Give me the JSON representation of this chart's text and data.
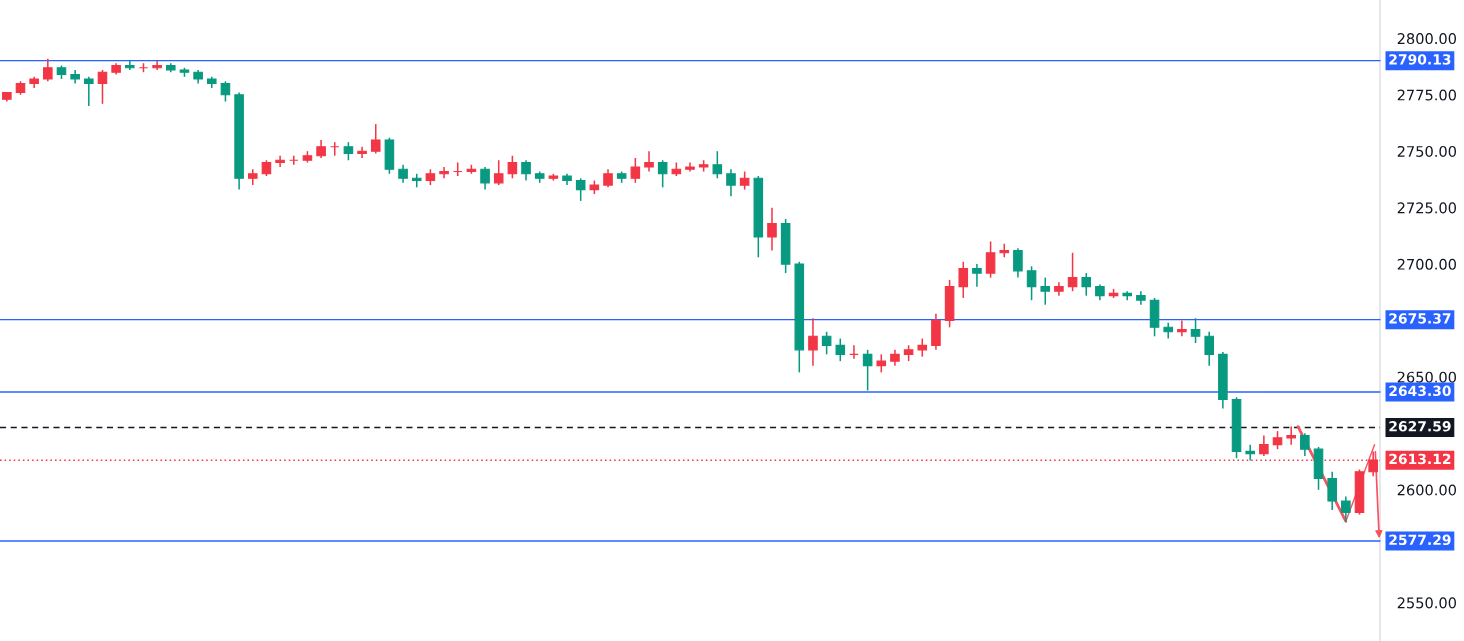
{
  "chart_data": {
    "type": "candlestick",
    "categories": [
      null,
      null,
      null,
      null,
      null,
      null,
      null,
      null,
      null,
      null,
      null,
      null,
      null,
      null,
      null,
      null,
      null,
      null,
      null,
      null,
      null,
      null,
      null,
      null,
      null,
      null,
      null,
      null,
      null,
      null,
      null,
      null,
      null,
      null,
      null,
      null,
      null,
      null,
      null,
      null,
      null,
      null,
      null,
      null,
      null,
      null,
      null,
      null,
      null,
      null,
      null,
      null,
      null,
      null,
      null,
      null,
      null,
      null,
      null,
      null,
      null,
      null,
      null,
      null,
      null,
      null,
      null,
      null,
      null,
      null,
      null,
      null,
      null,
      null,
      null,
      null,
      null,
      null,
      null,
      null,
      null,
      null,
      null,
      null,
      null,
      null,
      null,
      null,
      null,
      null,
      null,
      null,
      null,
      null,
      null,
      null,
      null,
      null,
      null,
      null,
      null
    ],
    "ohlc": [
      [
        2773,
        2776,
        2772,
        2776
      ],
      [
        2776,
        2781,
        2775,
        2780
      ],
      [
        2780,
        2783,
        2778,
        2782
      ],
      [
        2782,
        2791,
        2781,
        2787
      ],
      [
        2787,
        2788,
        2782,
        2784
      ],
      [
        2784,
        2786,
        2780,
        2782
      ],
      [
        2782,
        2783,
        2770,
        2780
      ],
      [
        2780,
        2786,
        2771,
        2785
      ],
      [
        2785,
        2789,
        2784,
        2788
      ],
      [
        2788,
        2790,
        2786,
        2787
      ],
      [
        2787,
        2789,
        2785,
        2787
      ],
      [
        2787,
        2790,
        2786,
        2788
      ],
      [
        2788,
        2789,
        2785,
        2786
      ],
      [
        2786,
        2787,
        2783,
        2785
      ],
      [
        2785,
        2786,
        2780,
        2782
      ],
      [
        2782,
        2783,
        2778,
        2780
      ],
      [
        2780,
        2781,
        2772,
        2775
      ],
      [
        2775,
        2776,
        2733,
        2738
      ],
      [
        2738,
        2742,
        2735,
        2740
      ],
      [
        2740,
        2746,
        2739,
        2745
      ],
      [
        2745,
        2748,
        2743,
        2746
      ],
      [
        2746,
        2748,
        2744,
        2746
      ],
      [
        2746,
        2750,
        2745,
        2748
      ],
      [
        2748,
        2755,
        2747,
        2752
      ],
      [
        2752,
        2754,
        2748,
        2752
      ],
      [
        2752,
        2754,
        2746,
        2749
      ],
      [
        2749,
        2752,
        2747,
        2750
      ],
      [
        2750,
        2762,
        2749,
        2755
      ],
      [
        2755,
        2756,
        2740,
        2742
      ],
      [
        2742,
        2744,
        2736,
        2738
      ],
      [
        2738,
        2740,
        2734,
        2737
      ],
      [
        2737,
        2742,
        2735,
        2740
      ],
      [
        2740,
        2743,
        2738,
        2741
      ],
      [
        2741,
        2745,
        2739,
        2741
      ],
      [
        2741,
        2744,
        2740,
        2742
      ],
      [
        2742,
        2743,
        2733,
        2736
      ],
      [
        2736,
        2746,
        2735,
        2740
      ],
      [
        2740,
        2748,
        2738,
        2745
      ],
      [
        2745,
        2746,
        2737,
        2740
      ],
      [
        2740,
        2741,
        2736,
        2738
      ],
      [
        2738,
        2740,
        2737,
        2739
      ],
      [
        2739,
        2740,
        2735,
        2737
      ],
      [
        2737,
        2738,
        2728,
        2733
      ],
      [
        2733,
        2737,
        2731,
        2735
      ],
      [
        2735,
        2742,
        2734,
        2740
      ],
      [
        2740,
        2741,
        2736,
        2738
      ],
      [
        2738,
        2747,
        2736,
        2743
      ],
      [
        2743,
        2750,
        2741,
        2745
      ],
      [
        2745,
        2746,
        2734,
        2740
      ],
      [
        2740,
        2745,
        2739,
        2742
      ],
      [
        2742,
        2745,
        2741,
        2743
      ],
      [
        2743,
        2746,
        2741,
        2744
      ],
      [
        2744,
        2750,
        2738,
        2740
      ],
      [
        2740,
        2742,
        2730,
        2735
      ],
      [
        2735,
        2741,
        2733,
        2738
      ],
      [
        2738,
        2739,
        2703,
        2712
      ],
      [
        2712,
        2725,
        2706,
        2718
      ],
      [
        2718,
        2720,
        2696,
        2700
      ],
      [
        2700,
        2701,
        2652,
        2662
      ],
      [
        2662,
        2676,
        2655,
        2668
      ],
      [
        2668,
        2670,
        2660,
        2664
      ],
      [
        2664,
        2667,
        2657,
        2660
      ],
      [
        2660,
        2664,
        2658,
        2660
      ],
      [
        2660,
        2662,
        2644,
        2655
      ],
      [
        2655,
        2660,
        2652,
        2657
      ],
      [
        2657,
        2662,
        2655,
        2660
      ],
      [
        2660,
        2664,
        2657,
        2662
      ],
      [
        2662,
        2667,
        2659,
        2664
      ],
      [
        2664,
        2678,
        2662,
        2675
      ],
      [
        2675,
        2693,
        2672,
        2690
      ],
      [
        2690,
        2701,
        2685,
        2698
      ],
      [
        2698,
        2700,
        2690,
        2696
      ],
      [
        2696,
        2710,
        2694,
        2705
      ],
      [
        2705,
        2709,
        2703,
        2706
      ],
      [
        2706,
        2707,
        2694,
        2697
      ],
      [
        2697,
        2699,
        2684,
        2690
      ],
      [
        2690,
        2694,
        2682,
        2688
      ],
      [
        2688,
        2692,
        2686,
        2690
      ],
      [
        2690,
        2705,
        2688,
        2694
      ],
      [
        2694,
        2696,
        2686,
        2690
      ],
      [
        2690,
        2691,
        2684,
        2686
      ],
      [
        2686,
        2689,
        2685,
        2687
      ],
      [
        2687,
        2688,
        2684,
        2686
      ],
      [
        2686,
        2688,
        2682,
        2684
      ],
      [
        2684,
        2685,
        2668,
        2672
      ],
      [
        2672,
        2674,
        2667,
        2670
      ],
      [
        2670,
        2675,
        2668,
        2671
      ],
      [
        2671,
        2676,
        2665,
        2668
      ],
      [
        2668,
        2670,
        2655,
        2660
      ],
      [
        2660,
        2661,
        2636,
        2640
      ],
      [
        2640,
        2641,
        2614,
        2617
      ],
      [
        2617,
        2620,
        2613,
        2616
      ],
      [
        2616,
        2624,
        2615,
        2620
      ],
      [
        2620,
        2626,
        2618,
        2623
      ],
      [
        2623,
        2628,
        2620,
        2624
      ],
      [
        2624,
        2625,
        2615,
        2618
      ],
      [
        2618,
        2619,
        2600,
        2605
      ],
      [
        2605,
        2608,
        2591,
        2595
      ],
      [
        2595,
        2597,
        2586,
        2590
      ],
      [
        2590,
        2609,
        2589,
        2608
      ],
      [
        2608,
        2617,
        2606,
        2613.12
      ]
    ],
    "colors": [
      "#f23645",
      "#f23645",
      "#f23645",
      "#f23645",
      "#089981",
      "#089981",
      "#089981",
      "#f23645",
      "#f23645",
      "#089981",
      "#f23645",
      "#f23645",
      "#089981",
      "#089981",
      "#089981",
      "#089981",
      "#089981",
      "#089981",
      "#f23645",
      "#f23645",
      "#f23645",
      "#f23645",
      "#f23645",
      "#f23645",
      "#f23645",
      "#089981",
      "#f23645",
      "#f23645",
      "#089981",
      "#089981",
      "#089981",
      "#f23645",
      "#f23645",
      "#f23645",
      "#f23645",
      "#089981",
      "#f23645",
      "#f23645",
      "#089981",
      "#089981",
      "#f23645",
      "#089981",
      "#089981",
      "#f23645",
      "#f23645",
      "#089981",
      "#f23645",
      "#f23645",
      "#089981",
      "#f23645",
      "#f23645",
      "#f23645",
      "#089981",
      "#089981",
      "#f23645",
      "#089981",
      "#f23645",
      "#089981",
      "#089981",
      "#f23645",
      "#089981",
      "#089981",
      "#f23645",
      "#089981",
      "#f23645",
      "#f23645",
      "#f23645",
      "#f23645",
      "#f23645",
      "#f23645",
      "#f23645",
      "#089981",
      "#f23645",
      "#f23645",
      "#089981",
      "#089981",
      "#089981",
      "#f23645",
      "#f23645",
      "#089981",
      "#089981",
      "#f23645",
      "#089981",
      "#089981",
      "#089981",
      "#089981",
      "#f23645",
      "#089981",
      "#089981",
      "#089981",
      "#089981",
      "#089981",
      "#f23645",
      "#f23645",
      "#f23645",
      "#089981",
      "#089981",
      "#089981",
      "#089981",
      "#f23645",
      "#f23645"
    ],
    "ylim": [
      2533,
      2817
    ],
    "yticks": [
      {
        "value": 2550,
        "label": "2550.00"
      },
      {
        "value": 2600,
        "label": "2600.00"
      },
      {
        "value": 2650,
        "label": "2650.00"
      },
      {
        "value": 2700,
        "label": "2700.00"
      },
      {
        "value": 2725,
        "label": "2725.00"
      },
      {
        "value": 2750,
        "label": "2750.00"
      },
      {
        "value": 2775,
        "label": "2775.00"
      },
      {
        "value": 2800,
        "label": "2800.00"
      }
    ],
    "ref_lines": [
      {
        "axis": "y",
        "value": 2790.13,
        "label": "2790.13",
        "color": "#2962ff",
        "line_style": "solid"
      },
      {
        "axis": "y",
        "value": 2675.37,
        "label": "2675.37",
        "color": "#2962ff",
        "line_style": "solid"
      },
      {
        "axis": "y",
        "value": 2643.3,
        "label": "2643.30",
        "color": "#2962ff",
        "line_style": "solid"
      },
      {
        "axis": "y",
        "value": 2627.59,
        "label": "2627.59",
        "color": "#131722",
        "line_style": "dashed"
      },
      {
        "axis": "y",
        "value": 2613.12,
        "label": "2613.12",
        "color": "#f23645",
        "line_style": "dotted"
      },
      {
        "axis": "y",
        "value": 2577.29,
        "label": "2577.29",
        "color": "#2962ff",
        "line_style": "solid"
      }
    ],
    "grid": false
  }
}
